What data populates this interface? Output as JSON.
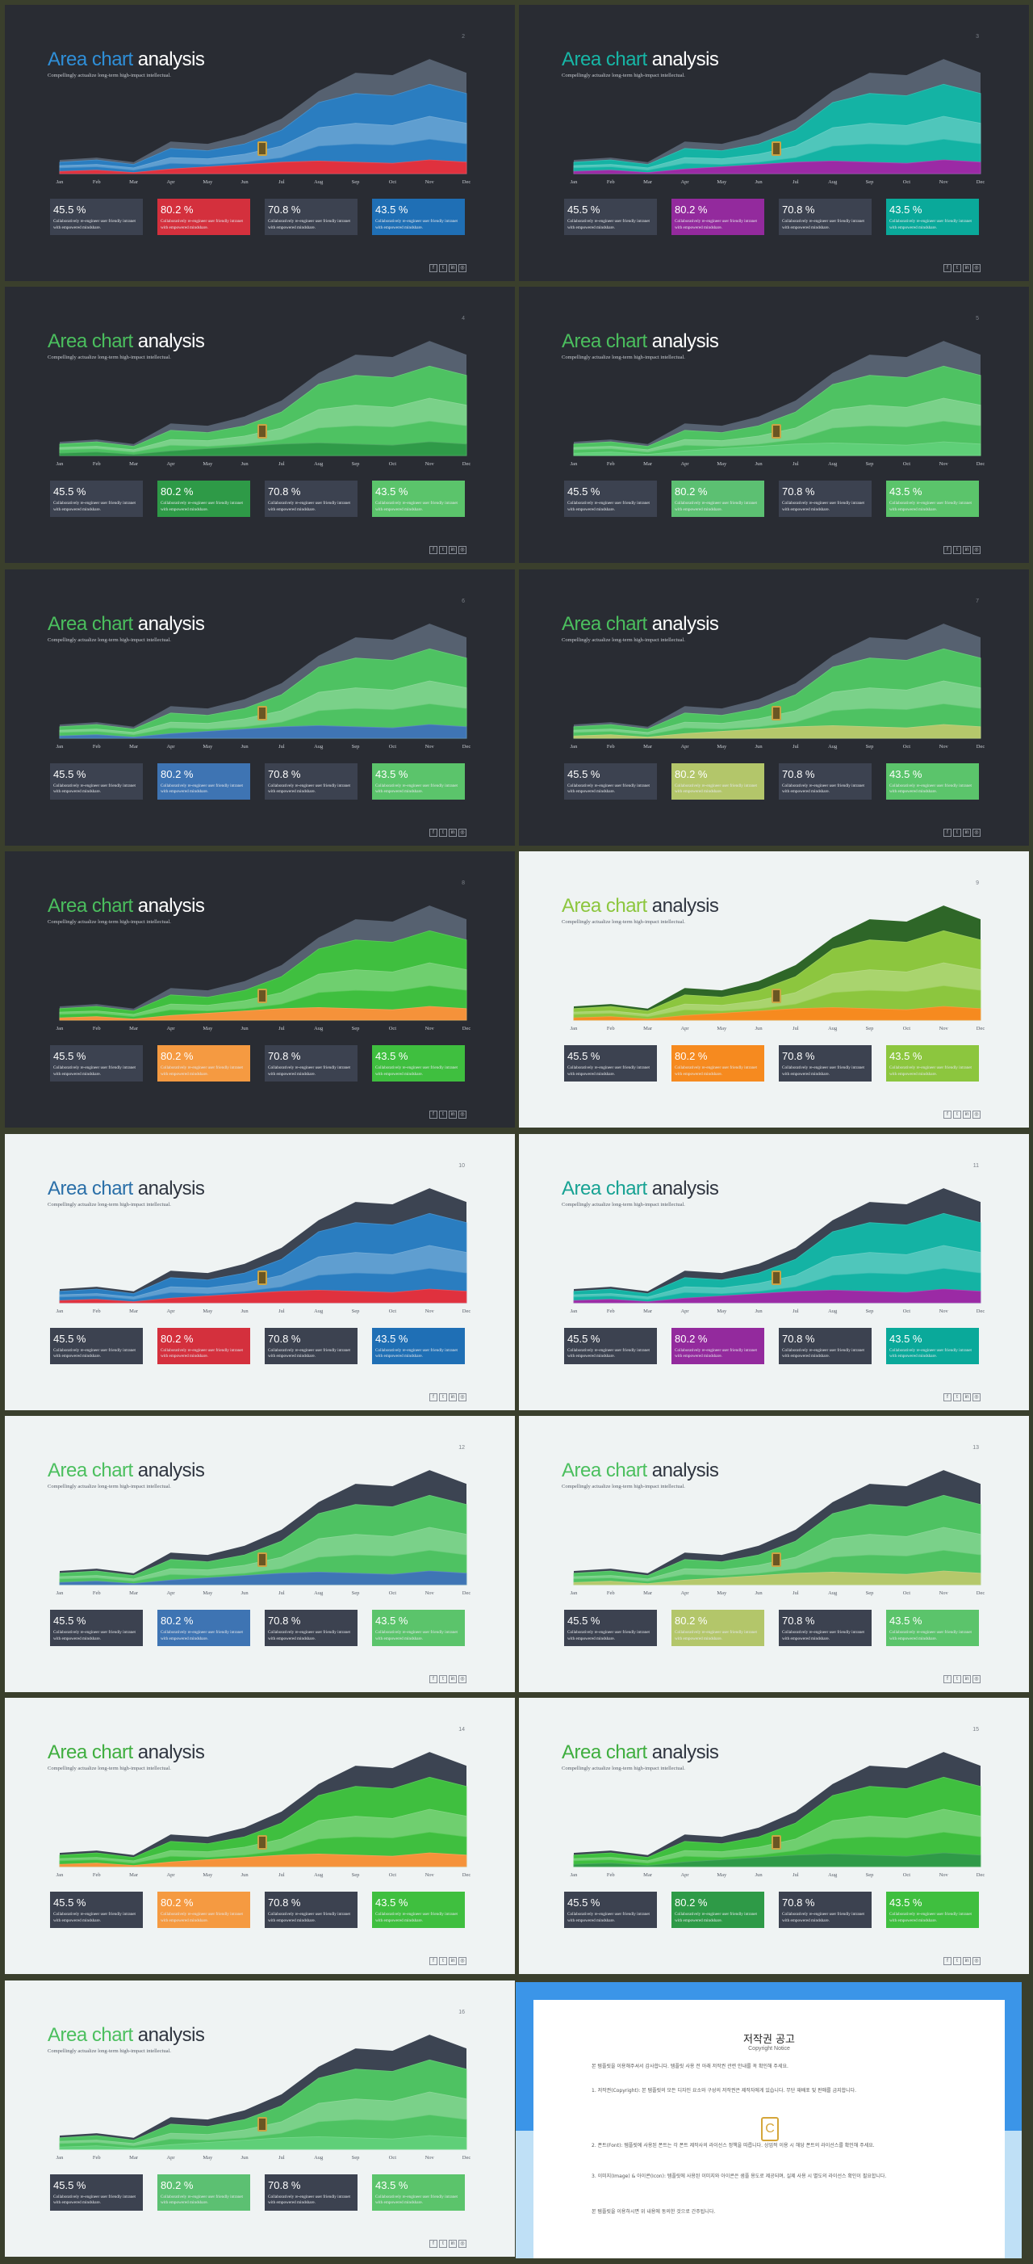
{
  "chart_data": {
    "type": "area",
    "categories": [
      "Jan",
      "Feb",
      "Mar",
      "Apr",
      "May",
      "Jun",
      "Jul",
      "Aug",
      "Sep",
      "Oct",
      "Nov",
      "Dec"
    ],
    "series": [
      {
        "values": [
          12,
          14,
          10,
          28,
          26,
          34,
          48,
          72,
          88,
          86,
          100,
          88
        ]
      },
      {
        "values": [
          10,
          12,
          8,
          22,
          20,
          26,
          38,
          62,
          70,
          68,
          78,
          70
        ]
      },
      {
        "values": [
          7,
          8,
          5,
          14,
          13,
          17,
          24,
          40,
          44,
          42,
          50,
          44
        ]
      },
      {
        "values": [
          5,
          6,
          3,
          9,
          8,
          10,
          14,
          24,
          26,
          25,
          30,
          26
        ]
      },
      {
        "values": [
          2,
          3,
          1,
          4,
          6,
          8,
          10,
          11,
          10,
          9,
          12,
          10
        ]
      }
    ],
    "ylim": [
      0,
      105
    ],
    "grid": false
  },
  "title": {
    "accent": "Area chart",
    "rest": "analysis"
  },
  "subtitle": "Compellingly actualize long-term high-impact intellectual.",
  "stats": [
    {
      "value": "45.5 %",
      "desc": "Collaboratively re-engineer user friendly intranet with empowered mindshare."
    },
    {
      "value": "80.2 %",
      "desc": "Collaboratively re-engineer user friendly intranet with empowered mindshare."
    },
    {
      "value": "70.8 %",
      "desc": "Collaboratively re-engineer user friendly intranet with empowered mindshare."
    },
    {
      "value": "43.5 %",
      "desc": "Collaboratively re-engineer user friendly intranet with empowered mindshare."
    }
  ],
  "social_icons": [
    {
      "icon": "facebook-icon",
      "glyph": "f"
    },
    {
      "icon": "twitter-icon",
      "glyph": "t"
    },
    {
      "icon": "linkedin-icon",
      "glyph": "in"
    },
    {
      "icon": "instagram-icon",
      "glyph": "◎"
    }
  ],
  "slides": [
    {
      "page": "2",
      "theme": "dark",
      "title_color": "#2f8fd8",
      "top": "#566170",
      "mid": "#2a7dc0",
      "low": "#e0313e",
      "box2": "#d4303d",
      "box4": "#1f6fb5",
      "box1": "#3c4250",
      "box3": "#3c4250"
    },
    {
      "page": "3",
      "theme": "dark",
      "title_color": "#17b6a6",
      "top": "#566170",
      "mid": "#14b3a4",
      "low": "#9b2aa5",
      "box2": "#932a9d",
      "box4": "#0aa99a",
      "box1": "#3c4250",
      "box3": "#3c4250"
    },
    {
      "page": "4",
      "theme": "dark",
      "title_color": "#4bbf5e",
      "top": "#566170",
      "mid": "#4ec262",
      "low": "#2f9a48",
      "box2": "#2e9a47",
      "box4": "#5bc46b",
      "box1": "#3c4250",
      "box3": "#3c4250"
    },
    {
      "page": "5",
      "theme": "dark",
      "title_color": "#4bbf5e",
      "top": "#566170",
      "mid": "#4ec262",
      "low": "#5fcf78",
      "box2": "#5cc072",
      "box4": "#5bc46b",
      "box1": "#3c4250",
      "box3": "#3c4250"
    },
    {
      "page": "6",
      "theme": "dark",
      "title_color": "#4bbf5e",
      "top": "#566170",
      "mid": "#4ec262",
      "low": "#3f75b5",
      "box2": "#3e74b3",
      "box4": "#5bc46b",
      "box1": "#3c4250",
      "box3": "#3c4250"
    },
    {
      "page": "7",
      "theme": "dark",
      "title_color": "#4bbf5e",
      "top": "#566170",
      "mid": "#4ec262",
      "low": "#b5c86b",
      "box2": "#b3c66a",
      "box4": "#5bc46b",
      "box1": "#3c4250",
      "box3": "#3c4250"
    },
    {
      "page": "8",
      "theme": "dark",
      "title_color": "#4bbf5e",
      "top": "#566170",
      "mid": "#3fbf3f",
      "low": "#f5923a",
      "box2": "#f59a41",
      "box4": "#3fbf3f",
      "box1": "#3c4250",
      "box3": "#3c4250"
    },
    {
      "page": "9",
      "theme": "light",
      "title_color": "#8cc63e",
      "top": "#2e6628",
      "mid": "#8cc63e",
      "low": "#f68a1f",
      "box2": "#f68a1f",
      "box4": "#8cc63e",
      "box1": "#3c4250",
      "box3": "#3c4250"
    },
    {
      "page": "10",
      "theme": "light",
      "title_color": "#2a6fa8",
      "top": "#3c4452",
      "mid": "#2a7dc0",
      "low": "#e0313e",
      "box2": "#d4303d",
      "box4": "#1f6fb5",
      "box1": "#3c4250",
      "box3": "#3c4250"
    },
    {
      "page": "11",
      "theme": "light",
      "title_color": "#17a293",
      "top": "#3c4452",
      "mid": "#14b3a4",
      "low": "#9b2aa5",
      "box2": "#932a9d",
      "box4": "#0aa99a",
      "box1": "#3c4250",
      "box3": "#3c4250"
    },
    {
      "page": "12",
      "theme": "light",
      "title_color": "#4bbf5e",
      "top": "#3c4452",
      "mid": "#4ec262",
      "low": "#3f75b5",
      "box2": "#3e74b3",
      "box4": "#5bc46b",
      "box1": "#3c4250",
      "box3": "#3c4250"
    },
    {
      "page": "13",
      "theme": "light",
      "title_color": "#4bbf5e",
      "top": "#3c4452",
      "mid": "#4ec262",
      "low": "#b5c86b",
      "box2": "#b3c66a",
      "box4": "#5bc46b",
      "box1": "#3c4250",
      "box3": "#3c4250"
    },
    {
      "page": "14",
      "theme": "light",
      "title_color": "#3fae3f",
      "top": "#3c4452",
      "mid": "#3fbf3f",
      "low": "#f5923a",
      "box2": "#f59a41",
      "box4": "#3fbf3f",
      "box1": "#3c4250",
      "box3": "#3c4250"
    },
    {
      "page": "15",
      "theme": "light",
      "title_color": "#3fae3f",
      "top": "#3c4452",
      "mid": "#3fbf3f",
      "low": "#2f9a48",
      "box2": "#2e9a47",
      "box4": "#3fbf3f",
      "box1": "#3c4250",
      "box3": "#3c4250"
    },
    {
      "page": "16",
      "theme": "light",
      "title_color": "#4bbf5e",
      "top": "#3c4452",
      "mid": "#4ec262",
      "low": "#5fcf78",
      "box2": "#5cc072",
      "box4": "#5bc46b",
      "box1": "#3c4250",
      "box3": "#3c4250"
    }
  ],
  "notice": {
    "title": "저작권 공고",
    "subtitle": "Copyright Notice",
    "paragraphs": [
      "본 템플릿을 이용해주셔서 감사합니다. 템플릿 사용 전 아래 저작권 관련 안내를 꼭 확인해 주세요.",
      "1. 저작권(Copyright): 본 템플릿의 모든 디자인 요소와 구성의 저작권은 제작자에게 있습니다. 무단 재배포 및 판매를 금지합니다.",
      "2. 폰트(Font): 템플릿에 사용된 폰트는 각 폰트 제작사의 라이선스 정책을 따릅니다. 상업적 이용 시 해당 폰트의 라이선스를 확인해 주세요.",
      "3. 이미지(Image) & 아이콘(Icon): 템플릿에 사용된 이미지와 아이콘은 샘플 용도로 제공되며, 실제 사용 시 별도의 라이선스 확인이 필요합니다.",
      "본 템플릿을 이용하시면 위 내용에 동의한 것으로 간주됩니다."
    ]
  }
}
